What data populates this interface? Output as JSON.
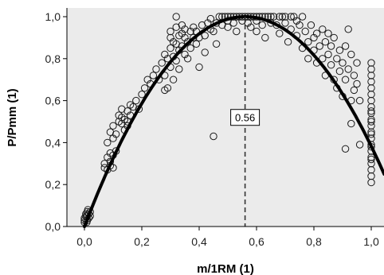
{
  "chart_data": {
    "type": "scatter",
    "xlabel": "m/1RM (1)",
    "ylabel": "P/Pmm (1)",
    "xlim": [
      -0.05,
      1.05
    ],
    "ylim": [
      0.0,
      1.04
    ],
    "x_ticks": [
      0.0,
      0.2,
      0.4,
      0.6,
      0.8,
      1.0
    ],
    "x_tick_labels": [
      "0,0",
      "0,2",
      "0,4",
      "0,6",
      "0,8",
      "1,0"
    ],
    "y_ticks": [
      0.0,
      0.2,
      0.4,
      0.6,
      0.8,
      1.0
    ],
    "y_tick_labels": [
      "0,0",
      "0,2",
      "0,4",
      "0,6",
      "0,8",
      "1,0"
    ],
    "grid": false,
    "background": "#ebebeb",
    "marker": "open-circle",
    "fit_curve": {
      "type": "quadratic",
      "vertex_x": 0.56,
      "vertex_y": 1.0,
      "through": [
        0.0,
        0.0
      ]
    },
    "reference_line": {
      "x": 0.56,
      "style": "dashed",
      "label": "0.56"
    },
    "points": [
      [
        0.0,
        0.02
      ],
      [
        0.0,
        0.03
      ],
      [
        0.0,
        0.04
      ],
      [
        0.005,
        0.05
      ],
      [
        0.005,
        0.06
      ],
      [
        0.01,
        0.03
      ],
      [
        0.01,
        0.05
      ],
      [
        0.01,
        0.07
      ],
      [
        0.015,
        0.04
      ],
      [
        0.015,
        0.06
      ],
      [
        0.02,
        0.05
      ],
      [
        0.02,
        0.07
      ],
      [
        0.008,
        0.02
      ],
      [
        0.012,
        0.08
      ],
      [
        0.07,
        0.28
      ],
      [
        0.07,
        0.3
      ],
      [
        0.08,
        0.27
      ],
      [
        0.08,
        0.33
      ],
      [
        0.09,
        0.35
      ],
      [
        0.09,
        0.31
      ],
      [
        0.08,
        0.4
      ],
      [
        0.09,
        0.45
      ],
      [
        0.1,
        0.42
      ],
      [
        0.1,
        0.34
      ],
      [
        0.1,
        0.28
      ],
      [
        0.11,
        0.36
      ],
      [
        0.1,
        0.48
      ],
      [
        0.11,
        0.44
      ],
      [
        0.09,
        0.29
      ],
      [
        0.12,
        0.5
      ],
      [
        0.12,
        0.53
      ],
      [
        0.13,
        0.49
      ],
      [
        0.13,
        0.56
      ],
      [
        0.14,
        0.51
      ],
      [
        0.14,
        0.46
      ],
      [
        0.15,
        0.55
      ],
      [
        0.15,
        0.5
      ],
      [
        0.16,
        0.58
      ],
      [
        0.16,
        0.53
      ],
      [
        0.17,
        0.57
      ],
      [
        0.18,
        0.6
      ],
      [
        0.19,
        0.56
      ],
      [
        0.2,
        0.63
      ],
      [
        0.13,
        0.52
      ],
      [
        0.15,
        0.48
      ],
      [
        0.21,
        0.66
      ],
      [
        0.22,
        0.7
      ],
      [
        0.23,
        0.68
      ],
      [
        0.24,
        0.72
      ],
      [
        0.25,
        0.75
      ],
      [
        0.26,
        0.7
      ],
      [
        0.27,
        0.78
      ],
      [
        0.28,
        0.82
      ],
      [
        0.28,
        0.72
      ],
      [
        0.29,
        0.8
      ],
      [
        0.29,
        0.66
      ],
      [
        0.3,
        0.76
      ],
      [
        0.3,
        0.85
      ],
      [
        0.3,
        0.9
      ],
      [
        0.3,
        0.93
      ],
      [
        0.31,
        0.88
      ],
      [
        0.31,
        0.81
      ],
      [
        0.32,
        0.95
      ],
      [
        0.32,
        0.87
      ],
      [
        0.32,
        0.79
      ],
      [
        0.33,
        0.91
      ],
      [
        0.33,
        0.84
      ],
      [
        0.33,
        0.75
      ],
      [
        0.34,
        0.92
      ],
      [
        0.34,
        0.86
      ],
      [
        0.34,
        0.96
      ],
      [
        0.35,
        0.82
      ],
      [
        0.35,
        0.9
      ],
      [
        0.35,
        0.94
      ],
      [
        0.36,
        0.88
      ],
      [
        0.36,
        0.8
      ],
      [
        0.37,
        0.93
      ],
      [
        0.37,
        0.85
      ],
      [
        0.38,
        0.9
      ],
      [
        0.38,
        0.95
      ],
      [
        0.39,
        0.87
      ],
      [
        0.39,
        0.93
      ],
      [
        0.4,
        0.9
      ],
      [
        0.31,
        0.7
      ],
      [
        0.32,
        1.0
      ],
      [
        0.28,
        0.65
      ],
      [
        0.41,
        0.96
      ],
      [
        0.42,
        0.91
      ],
      [
        0.43,
        0.97
      ],
      [
        0.44,
        0.99
      ],
      [
        0.44,
        0.94
      ],
      [
        0.45,
        0.93
      ],
      [
        0.46,
        0.97
      ],
      [
        0.47,
        1.0
      ],
      [
        0.48,
        1.0
      ],
      [
        0.48,
        0.96
      ],
      [
        0.49,
        1.0
      ],
      [
        0.5,
        1.0
      ],
      [
        0.5,
        0.98
      ],
      [
        0.5,
        0.95
      ],
      [
        0.51,
        1.0
      ],
      [
        0.52,
        1.0
      ],
      [
        0.52,
        0.97
      ],
      [
        0.53,
        1.0
      ],
      [
        0.54,
        1.0
      ],
      [
        0.55,
        1.0
      ],
      [
        0.55,
        0.98
      ],
      [
        0.56,
        1.0
      ],
      [
        0.57,
        1.0
      ],
      [
        0.57,
        0.97
      ],
      [
        0.58,
        1.0
      ],
      [
        0.58,
        0.95
      ],
      [
        0.59,
        1.0
      ],
      [
        0.6,
        1.0
      ],
      [
        0.6,
        0.98
      ],
      [
        0.6,
        0.93
      ],
      [
        0.61,
        1.0
      ],
      [
        0.62,
        1.0
      ],
      [
        0.62,
        0.96
      ],
      [
        0.63,
        1.0
      ],
      [
        0.63,
        0.9
      ],
      [
        0.64,
        1.0
      ],
      [
        0.65,
        1.0
      ],
      [
        0.65,
        0.97
      ],
      [
        0.66,
        1.0
      ],
      [
        0.67,
        0.96
      ],
      [
        0.68,
        1.0
      ],
      [
        0.68,
        0.92
      ],
      [
        0.69,
        1.0
      ],
      [
        0.7,
        0.97
      ],
      [
        0.7,
        1.0
      ],
      [
        0.71,
        0.88
      ],
      [
        0.72,
        1.0
      ],
      [
        0.72,
        0.94
      ],
      [
        0.73,
        1.0
      ],
      [
        0.74,
        0.91
      ],
      [
        0.74,
        0.98
      ],
      [
        0.75,
        0.96
      ],
      [
        0.76,
        1.0
      ],
      [
        0.76,
        0.85
      ],
      [
        0.45,
        0.43
      ],
      [
        0.42,
        0.83
      ],
      [
        0.4,
        0.76
      ],
      [
        0.46,
        0.87
      ],
      [
        0.53,
        0.93
      ],
      [
        0.77,
        0.93
      ],
      [
        0.78,
        0.88
      ],
      [
        0.78,
        0.8
      ],
      [
        0.79,
        0.96
      ],
      [
        0.8,
        0.9
      ],
      [
        0.8,
        0.84
      ],
      [
        0.81,
        0.78
      ],
      [
        0.81,
        0.92
      ],
      [
        0.82,
        0.86
      ],
      [
        0.83,
        0.94
      ],
      [
        0.83,
        0.8
      ],
      [
        0.84,
        0.88
      ],
      [
        0.84,
        0.72
      ],
      [
        0.85,
        0.82
      ],
      [
        0.85,
        0.92
      ],
      [
        0.86,
        0.77
      ],
      [
        0.86,
        0.86
      ],
      [
        0.87,
        0.7
      ],
      [
        0.87,
        0.9
      ],
      [
        0.88,
        0.8
      ],
      [
        0.88,
        0.66
      ],
      [
        0.89,
        0.74
      ],
      [
        0.89,
        0.84
      ],
      [
        0.9,
        0.62
      ],
      [
        0.9,
        0.78
      ],
      [
        0.91,
        0.86
      ],
      [
        0.91,
        0.7
      ],
      [
        0.92,
        0.94
      ],
      [
        0.92,
        0.75
      ],
      [
        0.93,
        0.82
      ],
      [
        0.93,
        0.6
      ],
      [
        0.94,
        0.72
      ],
      [
        0.94,
        0.65
      ],
      [
        0.95,
        0.78
      ],
      [
        0.95,
        0.68
      ],
      [
        0.96,
        0.6
      ],
      [
        0.91,
        0.37
      ],
      [
        0.93,
        0.49
      ],
      [
        0.96,
        0.39
      ],
      [
        1.0,
        0.78
      ],
      [
        1.0,
        0.75
      ],
      [
        1.0,
        0.72
      ],
      [
        1.0,
        0.69
      ],
      [
        1.0,
        0.66
      ],
      [
        1.0,
        0.63
      ],
      [
        1.0,
        0.6
      ],
      [
        1.0,
        0.57
      ],
      [
        1.0,
        0.54
      ],
      [
        1.0,
        0.51
      ],
      [
        1.0,
        0.48
      ],
      [
        1.0,
        0.45
      ],
      [
        1.0,
        0.42
      ],
      [
        1.0,
        0.39
      ],
      [
        1.0,
        0.36
      ],
      [
        1.0,
        0.33
      ],
      [
        1.0,
        0.3
      ],
      [
        1.0,
        0.27
      ],
      [
        1.0,
        0.24
      ],
      [
        1.0,
        0.21
      ],
      [
        1.0,
        0.55
      ],
      [
        1.0,
        0.5
      ],
      [
        1.0,
        0.44
      ],
      [
        1.0,
        0.38
      ],
      [
        1.0,
        0.32
      ]
    ]
  }
}
